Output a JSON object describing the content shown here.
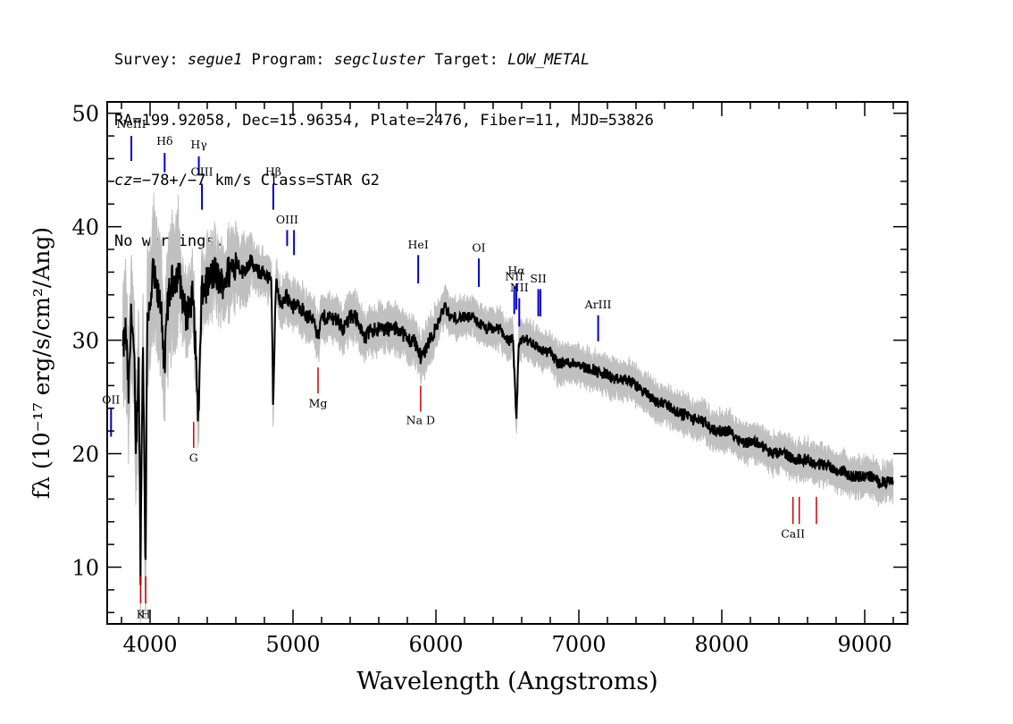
{
  "header": {
    "line1": {
      "survey_label": "Survey: ",
      "survey": "segue1",
      "program_label": " Program: ",
      "program": "segcluster",
      "target_label": " Target: ",
      "target": "LOW_METAL"
    },
    "line2": "RA=199.92058, Dec=15.96354, Plate=2476, Fiber=11, MJD=53826",
    "line3": {
      "cz_label": "cz",
      "cz_value": "=−78+/−7 km/s Class=STAR G2"
    },
    "line4": "No warnings."
  },
  "colors": {
    "flux": "#000000",
    "error_band": "#c0c0c0",
    "emission_lines": "#0000cc",
    "absorption_lines": "#cc0000",
    "axes": "#000000"
  },
  "chart_data": {
    "type": "line",
    "title": "",
    "xlabel": "Wavelength (Angstroms)",
    "ylabel": "fλ (10⁻¹⁷ erg/s/cm²/Ang)",
    "xlim": [
      3700,
      9300
    ],
    "ylim": [
      5,
      51
    ],
    "x_ticks": [
      4000,
      5000,
      6000,
      7000,
      8000,
      9000
    ],
    "y_ticks": [
      10,
      20,
      30,
      40,
      50
    ],
    "grid": false,
    "series": [
      {
        "x": [
          3810,
          3830,
          3850,
          3870,
          3890,
          3900,
          3920,
          3933,
          3950,
          3968,
          3980,
          4000,
          4020,
          4050,
          4080,
          4101,
          4120,
          4150,
          4200,
          4250,
          4300,
          4340,
          4360,
          4400,
          4450,
          4500,
          4550,
          4600,
          4650,
          4700,
          4750,
          4800,
          4850,
          4861,
          4880,
          4920,
          4950,
          5000,
          5050,
          5100,
          5150,
          5175,
          5200,
          5250,
          5300,
          5350,
          5400,
          5450,
          5500,
          5550,
          5600,
          5650,
          5700,
          5750,
          5800,
          5850,
          5893,
          5920,
          5950,
          6000,
          6030,
          6060,
          6100,
          6150,
          6200,
          6250,
          6300,
          6350,
          6400,
          6450,
          6500,
          6540,
          6563,
          6580,
          6600,
          6650,
          6700,
          6750,
          6800,
          6850,
          6900,
          6950,
          7000,
          7050,
          7100,
          7150,
          7200,
          7250,
          7300,
          7350,
          7400,
          7450,
          7500,
          7550,
          7600,
          7650,
          7700,
          7750,
          7800,
          7850,
          7900,
          7950,
          8000,
          8050,
          8100,
          8150,
          8200,
          8250,
          8300,
          8350,
          8400,
          8450,
          8498,
          8542,
          8600,
          8662,
          8700,
          8750,
          8800,
          8850,
          8900,
          8950,
          9000,
          9050,
          9100,
          9150,
          9200
        ],
        "y": [
          29,
          31,
          25,
          33,
          28,
          19,
          29,
          10,
          31,
          9,
          33,
          32,
          36,
          34,
          33,
          27,
          33,
          35,
          36,
          32,
          34,
          23,
          34,
          35,
          36,
          35,
          36,
          37,
          36,
          37,
          36,
          36,
          35,
          24,
          35,
          33,
          34,
          33,
          33,
          32,
          32,
          30,
          32,
          32,
          32,
          31,
          32,
          32,
          30,
          31,
          31,
          31,
          31,
          31,
          30,
          30,
          28.5,
          29,
          30,
          31,
          32,
          33,
          32,
          32,
          32,
          32,
          31.5,
          31,
          31,
          31,
          30,
          30,
          22.5,
          30,
          30,
          30,
          29.5,
          29,
          29,
          28,
          28,
          28,
          28,
          27.5,
          27.5,
          27,
          27,
          26.5,
          26.5,
          26.5,
          26,
          25.5,
          25,
          24.5,
          24.5,
          24,
          23.5,
          23.5,
          23,
          23,
          22.5,
          22,
          22,
          22,
          21.5,
          21,
          21,
          21,
          20.5,
          20,
          20,
          20,
          19.5,
          19.5,
          19.5,
          19,
          19,
          19,
          18.5,
          18.5,
          18,
          18,
          18,
          18,
          17.5,
          17.5,
          17.5
        ]
      }
    ],
    "annotations": {
      "emission": [
        {
          "label": "NeIII",
          "wavelength": 3869,
          "y_top": 48,
          "y_bottom": 45.8,
          "label_y": 48.7
        },
        {
          "label": "Hδ",
          "wavelength": 4102,
          "y_top": 46.5,
          "y_bottom": 44.8,
          "label_y": 47.2
        },
        {
          "label": "Hγ",
          "wavelength": 4341,
          "y_top": 46.2,
          "y_bottom": 44.5,
          "label_y": 46.9
        },
        {
          "label": "OIII",
          "wavelength": 4363,
          "y_top": 43.8,
          "y_bottom": 41.5,
          "label_y": 44.5
        },
        {
          "label": "Hβ",
          "wavelength": 4862,
          "y_top": 43.8,
          "y_bottom": 41.5,
          "label_y": 44.5
        },
        {
          "label": "OIII",
          "wavelength": 4959,
          "y_top": 39.7,
          "y_bottom": 38.3,
          "label_y": 40.3
        },
        {
          "label": "",
          "wavelength": 5007,
          "y_top": 39.7,
          "y_bottom": 37.5,
          "label_y": 40.3
        },
        {
          "label": "HeI",
          "wavelength": 5876,
          "y_top": 37.5,
          "y_bottom": 35.0,
          "label_y": 38.1
        },
        {
          "label": "OI",
          "wavelength": 6300,
          "y_top": 37.2,
          "y_bottom": 34.7,
          "label_y": 37.8
        },
        {
          "label": "NII",
          "wavelength": 6548,
          "y_top": 34.7,
          "y_bottom": 32.3,
          "label_y": 35.3
        },
        {
          "label": "Hα",
          "wavelength": 6563,
          "y_top": 35.0,
          "y_bottom": 32.7,
          "label_y": 35.8
        },
        {
          "label": "NII",
          "wavelength": 6583,
          "y_top": 33.7,
          "y_bottom": 31.2,
          "label_y": 34.3
        },
        {
          "label": "SII",
          "wavelength": 6716,
          "y_top": 34.5,
          "y_bottom": 32.1,
          "label_y": 35.1
        },
        {
          "label": "",
          "wavelength": 6731,
          "y_top": 34.5,
          "y_bottom": 32.1,
          "label_y": 35.1
        },
        {
          "label": "ArIII",
          "wavelength": 7135,
          "y_top": 32.2,
          "y_bottom": 29.9,
          "label_y": 32.8
        },
        {
          "label": "OII",
          "wavelength": 3727,
          "y_top": 24.0,
          "y_bottom": 21.5,
          "label_y": 24.4
        }
      ],
      "absorption": [
        {
          "label": "G",
          "wavelength": 4305,
          "y_top": 22.8,
          "y_bottom": 20.5,
          "label_y": 19.3
        },
        {
          "label": "Mg",
          "wavelength": 5175,
          "y_top": 27.6,
          "y_bottom": 25.3,
          "label_y": 24.1
        },
        {
          "label": "Na D",
          "wavelength": 5893,
          "y_top": 26.0,
          "y_bottom": 23.7,
          "label_y": 22.6
        },
        {
          "label": "K",
          "wavelength": 3934,
          "y_top": 9.2,
          "y_bottom": 6.8,
          "label_y": 5.5
        },
        {
          "label": "H",
          "wavelength": 3969,
          "y_top": 9.2,
          "y_bottom": 6.8,
          "label_y": 5.5
        },
        {
          "label": "CaII",
          "wavelength": 8498,
          "y_top": 16.2,
          "y_bottom": 13.8,
          "label_y": 12.6
        },
        {
          "label": "",
          "wavelength": 8542,
          "y_top": 16.2,
          "y_bottom": 13.8,
          "label_y": 12.6
        },
        {
          "label": "",
          "wavelength": 8662,
          "y_top": 16.2,
          "y_bottom": 13.8,
          "label_y": 12.6
        }
      ]
    }
  }
}
